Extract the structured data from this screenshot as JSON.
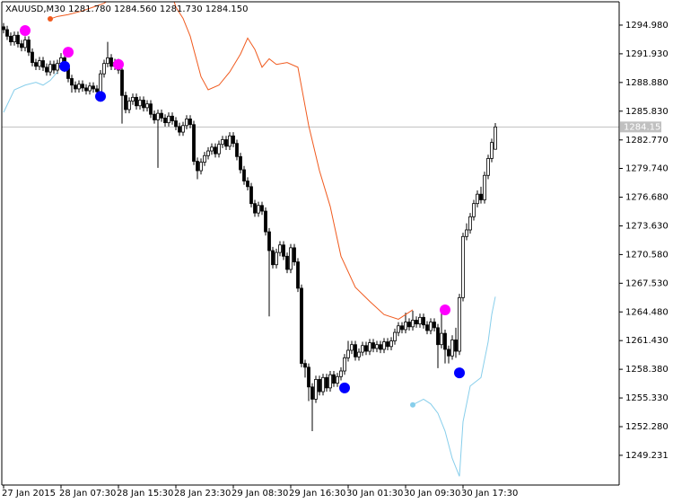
{
  "chart_data": {
    "type": "candlestick",
    "title": "XAUUSD,M30  1281.780 1284.560 1281.730 1284.150",
    "ylim": [
      1246.07,
      1297.46
    ],
    "yticks": [
      {
        "value": 1294.98,
        "label": "1294.980"
      },
      {
        "value": 1291.93,
        "label": "1291.930"
      },
      {
        "value": 1288.88,
        "label": "1288.880"
      },
      {
        "value": 1285.83,
        "label": "1285.830"
      },
      {
        "value": 1282.77,
        "label": "1282.770"
      },
      {
        "value": 1279.74,
        "label": "1279.740"
      },
      {
        "value": 1276.68,
        "label": "1276.680"
      },
      {
        "value": 1273.63,
        "label": "1273.630"
      },
      {
        "value": 1270.58,
        "label": "1270.580"
      },
      {
        "value": 1267.53,
        "label": "1267.530"
      },
      {
        "value": 1264.48,
        "label": "1264.480"
      },
      {
        "value": 1261.43,
        "label": "1261.430"
      },
      {
        "value": 1258.38,
        "label": "1258.380"
      },
      {
        "value": 1255.33,
        "label": "1255.330"
      },
      {
        "value": 1252.28,
        "label": "1252.280"
      },
      {
        "value": 1249.231,
        "label": "1249.231"
      }
    ],
    "price_line": {
      "value": 1284.15,
      "label": "1284.150"
    },
    "categories": [
      "27 Jan 2015",
      null,
      null,
      null,
      null,
      null,
      null,
      null,
      null,
      null,
      null,
      null,
      null,
      null,
      null,
      null,
      "28 Jan 07:30",
      null,
      null,
      null,
      null,
      null,
      null,
      null,
      null,
      null,
      null,
      null,
      null,
      null,
      null,
      null,
      "28 Jan 15:30",
      null,
      null,
      null,
      null,
      null,
      null,
      null,
      null,
      null,
      null,
      null,
      null,
      null,
      null,
      null,
      "28 Jan 23:30",
      null,
      null,
      null,
      null,
      null,
      null,
      null,
      null,
      null,
      null,
      null,
      null,
      null,
      null,
      null,
      "29 Jan 08:30",
      null,
      null,
      null,
      null,
      null,
      null,
      null,
      null,
      null,
      null,
      null,
      null,
      null,
      null,
      null,
      "29 Jan 16:30",
      null,
      null,
      null,
      null,
      null,
      null,
      null,
      null,
      null,
      null,
      null,
      null,
      null,
      null,
      null,
      "30 Jan 01:30",
      null,
      null,
      null,
      null,
      null,
      null,
      null,
      null,
      null,
      null,
      null,
      null,
      null,
      null,
      null,
      "30 Jan 09:30",
      null,
      null,
      null,
      null,
      null,
      null,
      null,
      null,
      null,
      null,
      null,
      null,
      null,
      null,
      null,
      "30 Jan 17:30",
      null,
      null,
      null,
      null,
      null,
      null,
      null,
      null,
      null
    ],
    "open": [
      1294.8,
      1294.5,
      1293.8,
      1293.2,
      1293.9,
      1293.0,
      1292.6,
      1293.4,
      1292.1,
      1291.0,
      1290.6,
      1291.2,
      1290.5,
      1290.0,
      1290.8,
      1290.2,
      1290.9,
      1291.5,
      1290.4,
      1289.3,
      1288.6,
      1288.2,
      1288.7,
      1288.3,
      1288.0,
      1288.5,
      1288.2,
      1287.9,
      1289.8,
      1290.9,
      1291.5,
      1290.6,
      1291.0,
      1290.2,
      1287.5,
      1286.0,
      1286.9,
      1287.3,
      1286.4,
      1287.0,
      1286.2,
      1286.6,
      1285.5,
      1284.9,
      1285.6,
      1285.1,
      1284.6,
      1285.3,
      1284.8,
      1284.2,
      1283.6,
      1284.3,
      1285.0,
      1284.4,
      1280.5,
      1279.5,
      1280.4,
      1281.1,
      1281.6,
      1282.0,
      1281.3,
      1282.3,
      1282.8,
      1282.1,
      1283.2,
      1282.4,
      1281.0,
      1279.6,
      1278.4,
      1277.8,
      1276.0,
      1275.0,
      1275.8,
      1275.2,
      1273.0,
      1271.0,
      1269.5,
      1270.8,
      1271.6,
      1270.4,
      1269.0,
      1271.3,
      1269.8,
      1267.0,
      1259.0,
      1258.6,
      1256.5,
      1255.2,
      1257.3,
      1256.0,
      1257.5,
      1256.4,
      1257.8,
      1256.9,
      1257.6,
      1258.2,
      1259.6,
      1260.4,
      1261.0,
      1259.7,
      1260.2,
      1260.9,
      1260.3,
      1261.2,
      1260.6,
      1261.0,
      1260.5,
      1261.3,
      1260.8,
      1261.4,
      1262.3,
      1263.0,
      1262.6,
      1263.4,
      1262.9,
      1263.6,
      1263.2,
      1263.9,
      1263.1,
      1262.5,
      1263.4,
      1262.8,
      1261.0,
      1262.2,
      1260.5,
      1259.8,
      1261.5,
      1260.3,
      1266.0,
      1272.5,
      1273.2,
      1274.6,
      1276.0,
      1277.0,
      1276.4,
      1279.0,
      1280.8,
      1281.78
    ],
    "high": [
      1295.2,
      1294.9,
      1294.2,
      1294.3,
      1294.3,
      1293.4,
      1293.8,
      1293.8,
      1292.5,
      1291.4,
      1291.6,
      1291.6,
      1290.9,
      1291.2,
      1291.2,
      1291.3,
      1292.0,
      1291.9,
      1290.8,
      1289.7,
      1289.0,
      1289.1,
      1289.1,
      1288.7,
      1288.9,
      1288.9,
      1288.6,
      1290.2,
      1291.3,
      1293.2,
      1291.9,
      1291.4,
      1291.4,
      1290.6,
      1287.9,
      1287.3,
      1287.7,
      1287.7,
      1287.4,
      1287.4,
      1287.0,
      1287.0,
      1285.9,
      1286.0,
      1286.0,
      1285.5,
      1285.7,
      1285.7,
      1285.2,
      1284.6,
      1284.7,
      1285.4,
      1285.4,
      1284.8,
      1280.9,
      1280.8,
      1281.5,
      1282.0,
      1282.4,
      1282.4,
      1282.7,
      1283.2,
      1283.2,
      1283.6,
      1283.6,
      1282.8,
      1281.4,
      1280.0,
      1278.8,
      1278.2,
      1276.4,
      1276.2,
      1276.2,
      1275.6,
      1273.4,
      1271.4,
      1271.2,
      1272.0,
      1272.0,
      1270.8,
      1271.7,
      1271.7,
      1270.2,
      1267.4,
      1259.4,
      1259.0,
      1256.9,
      1257.7,
      1257.7,
      1257.9,
      1257.9,
      1258.2,
      1258.2,
      1258.0,
      1258.6,
      1260.0,
      1261.4,
      1261.4,
      1261.4,
      1260.6,
      1261.3,
      1261.3,
      1261.6,
      1261.6,
      1261.4,
      1261.4,
      1261.7,
      1261.7,
      1261.8,
      1262.7,
      1263.4,
      1263.4,
      1264.4,
      1263.8,
      1264.6,
      1264.0,
      1264.3,
      1264.3,
      1263.5,
      1263.8,
      1263.8,
      1263.2,
      1264.7,
      1262.6,
      1260.9,
      1262.0,
      1262.8,
      1266.4,
      1272.9,
      1273.9,
      1275.0,
      1276.4,
      1277.4,
      1277.8,
      1279.4,
      1281.2,
      1282.9,
      1284.56
    ],
    "low": [
      1294.1,
      1293.4,
      1292.8,
      1292.8,
      1292.6,
      1292.2,
      1292.2,
      1291.7,
      1290.6,
      1290.2,
      1290.2,
      1290.1,
      1289.6,
      1289.6,
      1289.8,
      1289.8,
      1290.5,
      1290.0,
      1288.9,
      1287.8,
      1287.8,
      1287.8,
      1287.9,
      1287.6,
      1287.6,
      1287.8,
      1287.5,
      1287.5,
      1289.4,
      1290.5,
      1290.2,
      1290.2,
      1289.8,
      1284.5,
      1285.6,
      1285.6,
      1286.5,
      1286.0,
      1286.0,
      1285.8,
      1285.8,
      1285.1,
      1284.5,
      1279.8,
      1284.7,
      1284.2,
      1284.2,
      1284.4,
      1283.8,
      1283.2,
      1283.2,
      1283.9,
      1284.0,
      1280.1,
      1278.6,
      1279.1,
      1280.0,
      1280.7,
      1281.2,
      1280.9,
      1280.9,
      1281.9,
      1281.7,
      1281.7,
      1282.0,
      1280.6,
      1279.2,
      1278.0,
      1277.4,
      1275.6,
      1274.6,
      1274.6,
      1274.8,
      1272.6,
      1264.0,
      1269.1,
      1269.1,
      1270.4,
      1270.0,
      1268.6,
      1268.6,
      1269.4,
      1266.6,
      1258.6,
      1257.5,
      1255.0,
      1251.8,
      1254.8,
      1255.6,
      1255.6,
      1256.0,
      1256.0,
      1256.5,
      1256.5,
      1257.2,
      1257.8,
      1259.2,
      1260.0,
      1259.3,
      1259.3,
      1259.8,
      1259.9,
      1259.9,
      1260.2,
      1260.2,
      1260.1,
      1260.1,
      1260.4,
      1260.4,
      1261.0,
      1261.9,
      1262.2,
      1262.2,
      1262.5,
      1262.5,
      1262.8,
      1262.8,
      1262.7,
      1262.1,
      1262.1,
      1262.4,
      1258.5,
      1260.6,
      1259.0,
      1259.0,
      1259.4,
      1259.6,
      1259.9,
      1265.6,
      1272.1,
      1272.8,
      1274.2,
      1275.6,
      1276.0,
      1276.0,
      1278.6,
      1280.4,
      1281.73
    ],
    "close": [
      1294.5,
      1293.8,
      1293.2,
      1293.9,
      1293.0,
      1292.6,
      1293.4,
      1292.1,
      1291.0,
      1290.6,
      1291.2,
      1290.5,
      1290.0,
      1290.8,
      1290.2,
      1290.9,
      1291.5,
      1290.4,
      1289.3,
      1288.6,
      1288.2,
      1288.7,
      1288.3,
      1288.0,
      1288.5,
      1288.2,
      1287.9,
      1289.8,
      1290.9,
      1291.5,
      1290.6,
      1291.0,
      1290.2,
      1287.5,
      1286.0,
      1286.9,
      1287.3,
      1286.4,
      1287.0,
      1286.2,
      1286.6,
      1285.5,
      1284.9,
      1285.6,
      1285.1,
      1284.6,
      1285.3,
      1284.8,
      1284.2,
      1283.6,
      1284.3,
      1285.0,
      1284.4,
      1280.5,
      1279.5,
      1280.4,
      1281.1,
      1281.6,
      1282.0,
      1281.3,
      1282.3,
      1282.8,
      1282.1,
      1283.2,
      1282.4,
      1281.0,
      1279.6,
      1278.4,
      1277.8,
      1276.0,
      1275.0,
      1275.8,
      1275.2,
      1273.0,
      1271.0,
      1269.5,
      1270.8,
      1271.6,
      1270.4,
      1269.0,
      1271.3,
      1269.8,
      1267.0,
      1259.0,
      1258.6,
      1256.5,
      1255.2,
      1257.3,
      1256.0,
      1257.5,
      1256.4,
      1257.8,
      1256.9,
      1257.6,
      1258.2,
      1259.6,
      1260.4,
      1261.0,
      1259.7,
      1260.2,
      1260.9,
      1260.3,
      1261.2,
      1260.6,
      1261.0,
      1260.5,
      1261.3,
      1260.8,
      1261.4,
      1262.3,
      1263.0,
      1262.6,
      1263.4,
      1262.9,
      1263.6,
      1263.2,
      1263.9,
      1263.1,
      1262.5,
      1263.4,
      1262.8,
      1261.0,
      1262.2,
      1260.5,
      1259.8,
      1261.5,
      1260.3,
      1266.0,
      1272.5,
      1273.2,
      1274.6,
      1276.0,
      1277.0,
      1276.4,
      1279.0,
      1280.8,
      1282.5,
      1284.15
    ],
    "indicators": [
      {
        "type": "line",
        "color": "#f05a1e",
        "start_marker": true,
        "x": [
          13,
          15,
          18,
          22,
          25,
          28,
          31,
          47,
          48,
          50,
          52,
          55,
          57,
          60,
          63,
          66,
          68,
          70,
          72,
          74,
          76,
          79,
          82,
          85,
          88,
          91,
          94,
          98,
          102,
          106,
          110,
          114
        ],
        "values": [
          1295.64,
          1295.9,
          1296.1,
          1296.5,
          1296.9,
          1297.3,
          1298.1,
          1298.1,
          1296.9,
          1295.7,
          1293.8,
          1289.5,
          1288.1,
          1288.6,
          1290.0,
          1291.9,
          1293.6,
          1292.4,
          1290.5,
          1291.4,
          1290.8,
          1291.0,
          1290.5,
          1284.3,
          1279.5,
          1275.7,
          1270.4,
          1267.1,
          1265.6,
          1264.2,
          1263.7,
          1264.7
        ]
      },
      {
        "type": "line",
        "color": "#87ceeb",
        "start_marker": false,
        "x": [
          0,
          3,
          6,
          9,
          11,
          13,
          15
        ],
        "values": [
          1285.7,
          1288.1,
          1288.6,
          1288.9,
          1288.6,
          1289.1,
          1290.0
        ]
      },
      {
        "type": "line",
        "color": "#87ceeb",
        "start_marker": true,
        "x": [
          114,
          117,
          119,
          121,
          123,
          125,
          127,
          128,
          130,
          133,
          134,
          135,
          136,
          137
        ],
        "values": [
          1254.6,
          1255.2,
          1254.7,
          1253.7,
          1251.8,
          1248.9,
          1247.0,
          1252.8,
          1256.6,
          1257.5,
          1259.4,
          1261.3,
          1264.2,
          1266.1
        ]
      },
      {
        "type": "signals",
        "color": "#ff00ff",
        "x": [
          6,
          18,
          32,
          123
        ],
        "values": [
          1294.4,
          1292.1,
          1290.8,
          1264.7
        ]
      },
      {
        "type": "signals",
        "color": "#0000ff",
        "x": [
          17,
          27,
          95,
          127
        ],
        "values": [
          1290.6,
          1287.4,
          1256.4,
          1258.0
        ]
      }
    ]
  }
}
